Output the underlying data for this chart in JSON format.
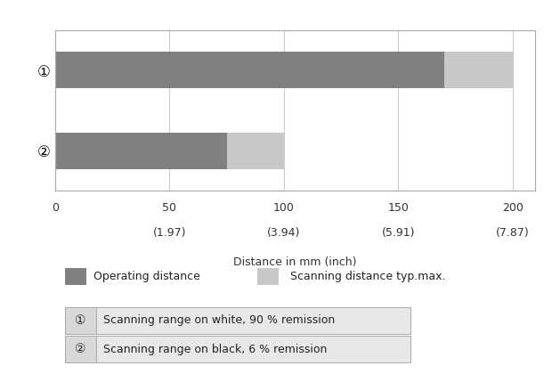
{
  "bar1_operating": 170,
  "bar1_scanning": 30,
  "bar2_operating": 75,
  "bar2_scanning": 25,
  "color_operating": "#808080",
  "color_scanning": "#c8c8c8",
  "xlim": [
    0,
    210
  ],
  "xticks": [
    0,
    50,
    100,
    150,
    200
  ],
  "xtick_labels_mm": [
    "0",
    "50",
    "100",
    "150",
    "200"
  ],
  "xtick_labels_inch": [
    "",
    "(1.97)",
    "(3.94)",
    "(5.91)",
    "(7.87)"
  ],
  "xlabel": "Distance in mm (inch)",
  "ytick_labels": [
    "①",
    "②"
  ],
  "legend1_label": "Operating distance",
  "legend2_label": "Scanning distance typ.max.",
  "table_row1_num": "①",
  "table_row1_text": "Scanning range on white, 90 % remission",
  "table_row2_num": "②",
  "table_row2_text": "Scanning range on black, 6 % remission",
  "bar_height": 0.45,
  "figure_bg": "#ffffff"
}
